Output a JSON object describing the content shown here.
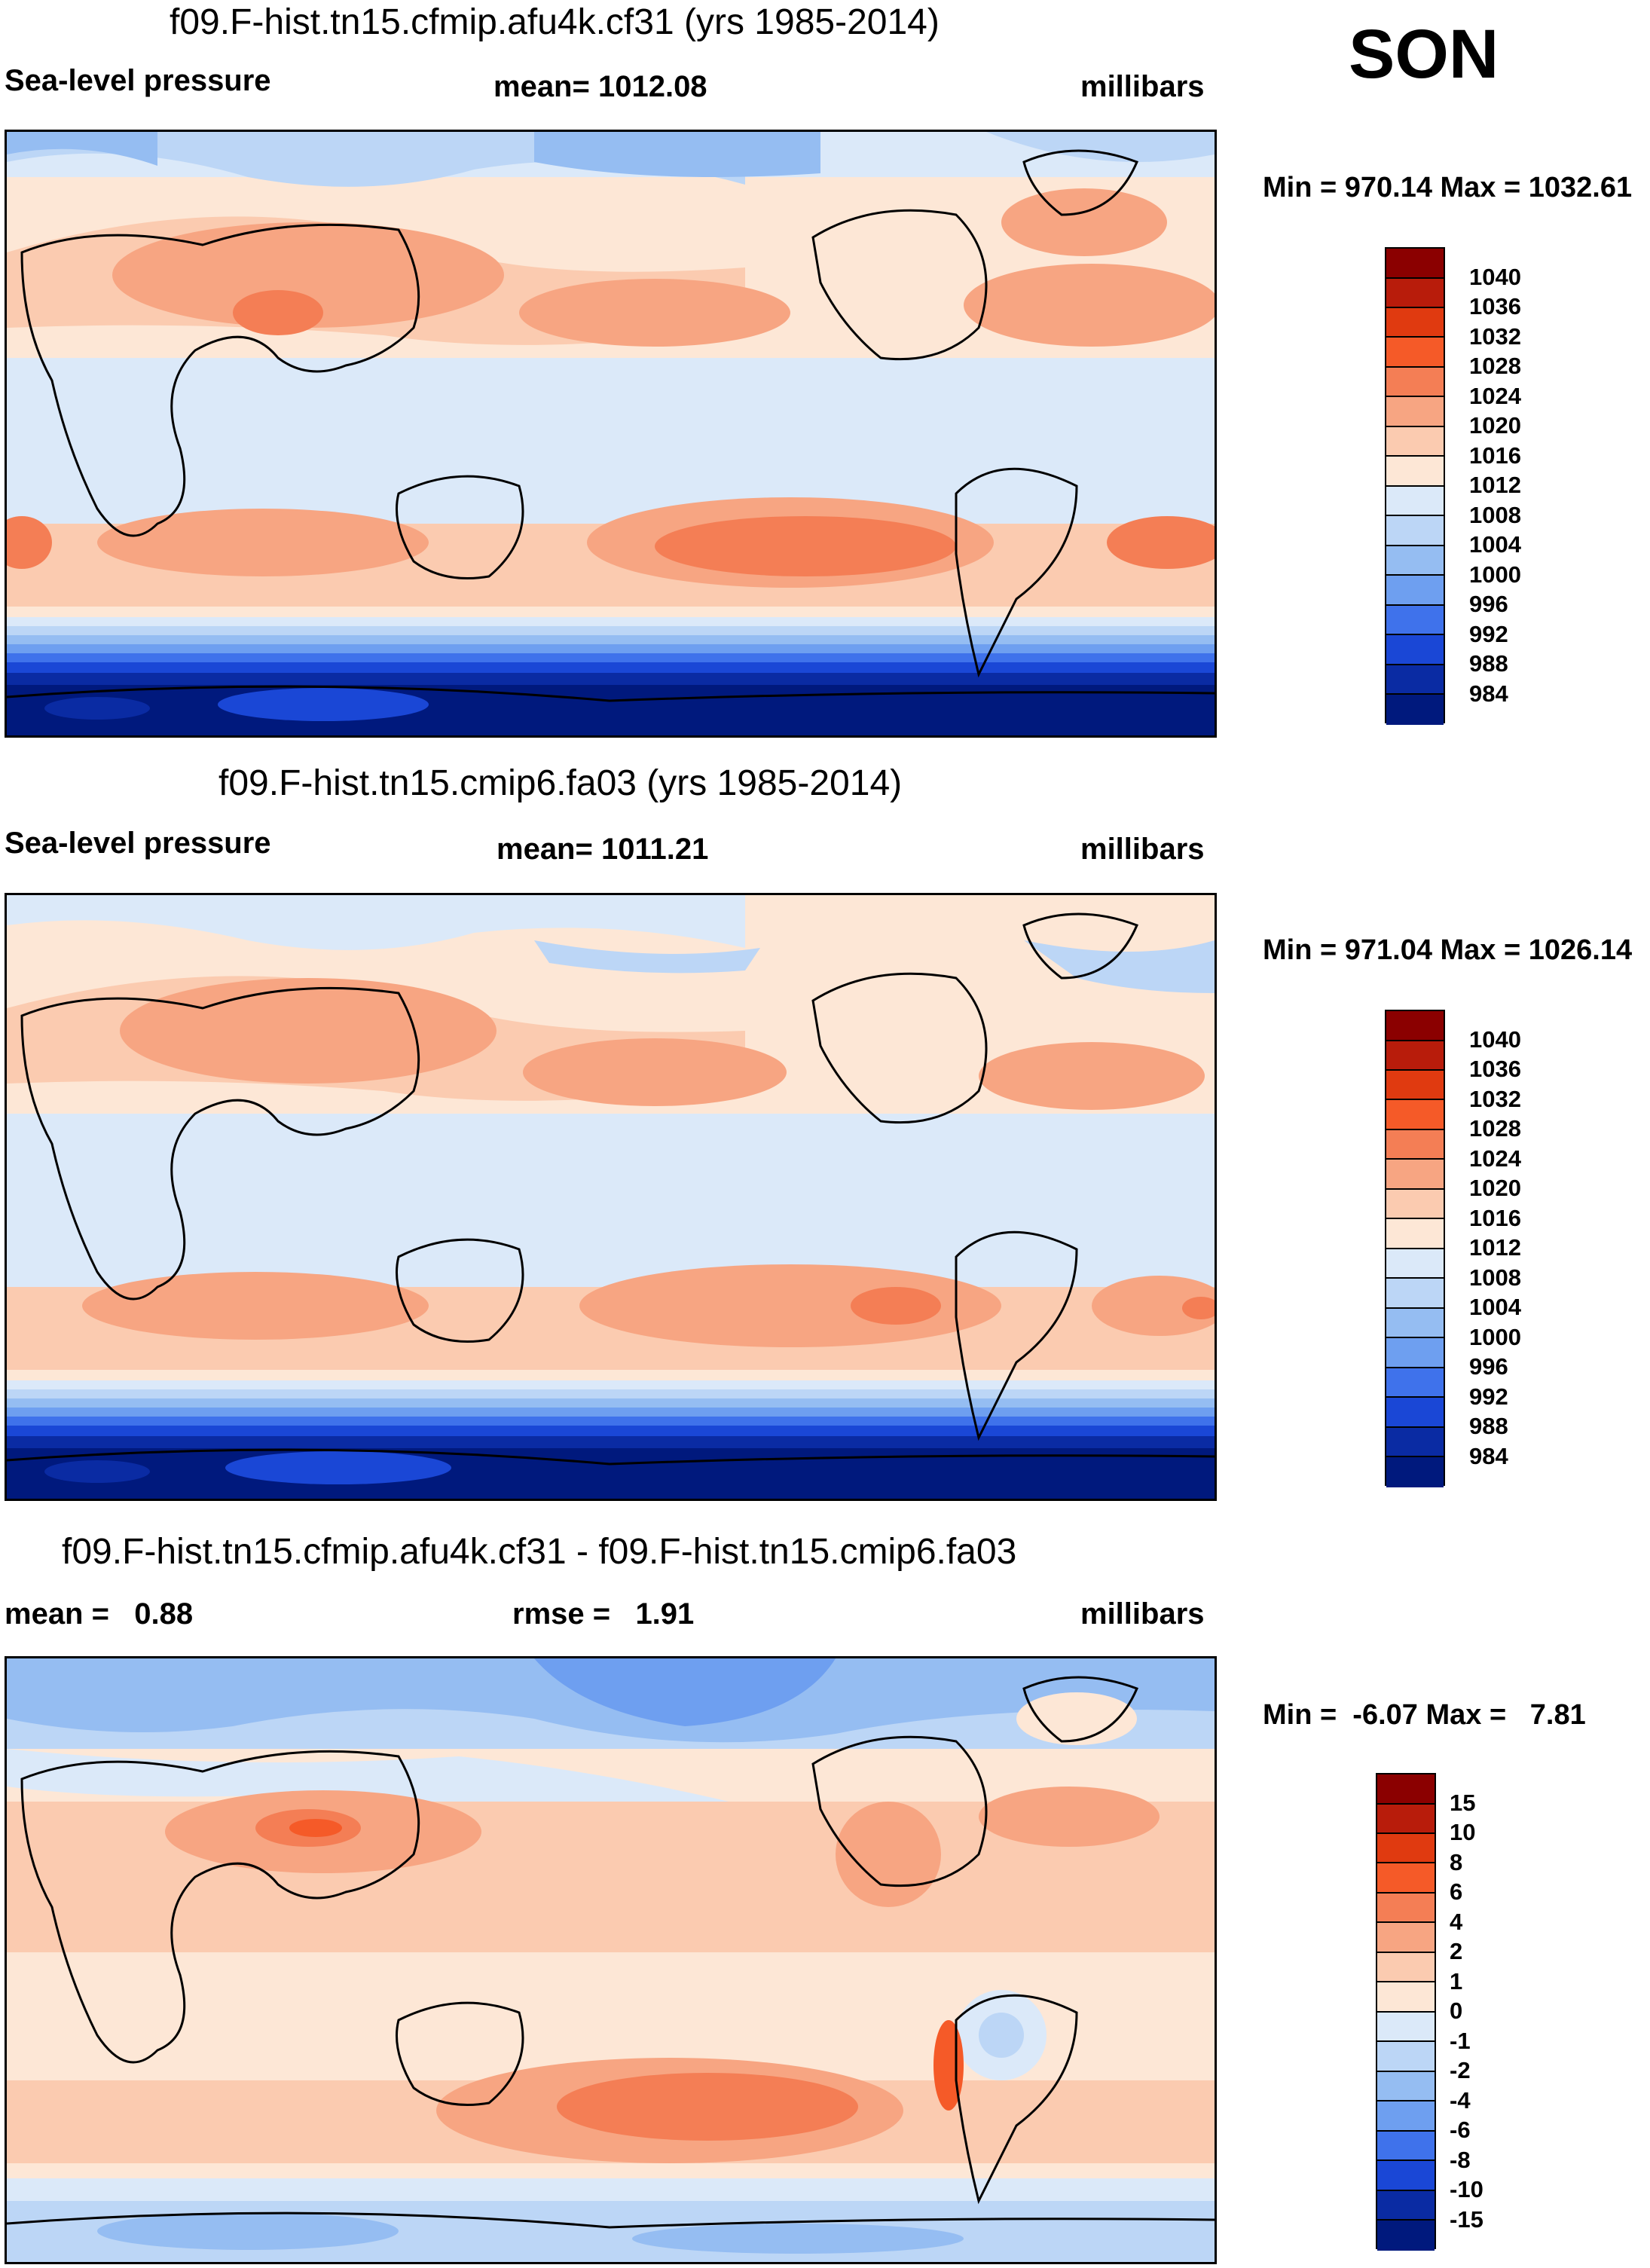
{
  "season": "SON",
  "levels_abs": [
    "1040",
    "1036",
    "1032",
    "1028",
    "1024",
    "1020",
    "1016",
    "1012",
    "1008",
    "1004",
    "1000",
    "996",
    "992",
    "988",
    "984"
  ],
  "levels_diff": [
    "15",
    "10",
    "8",
    "6",
    "4",
    "2",
    "1",
    "0",
    "-1",
    "-2",
    "-4",
    "-6",
    "-8",
    "-10",
    "-15"
  ],
  "colors": [
    "#8b0000",
    "#b81c0b",
    "#e03a10",
    "#f55a28",
    "#f47e55",
    "#f7a582",
    "#fbcbb0",
    "#fde7d6",
    "#dbe9f9",
    "#bcd6f6",
    "#95bdf2",
    "#6e9ff0",
    "#3f72eb",
    "#1a47d6",
    "#0a2ba3",
    "#00197d"
  ],
  "panels": [
    {
      "title": "f09.F-hist.tn15.cfmip.afu4k.cf31 (yrs 1985-2014)",
      "left_label": "Sea-level pressure",
      "center_label": "mean= 1012.08",
      "right_label": "millibars",
      "minmax": "Min = 970.14 Max = 1032.61"
    },
    {
      "title": "f09.F-hist.tn15.cmip6.fa03 (yrs 1985-2014)",
      "left_label": "Sea-level pressure",
      "center_label": "mean= 1011.21",
      "right_label": "millibars",
      "minmax": "Min = 971.04 Max = 1026.14"
    },
    {
      "title": "f09.F-hist.tn15.cfmip.afu4k.cf31 - f09.F-hist.tn15.cmip6.fa03",
      "left_label": "mean =   0.88",
      "center_label": "rmse =   1.91",
      "right_label": "millibars",
      "minmax": "Min =  -6.07 Max =   7.81"
    }
  ]
}
